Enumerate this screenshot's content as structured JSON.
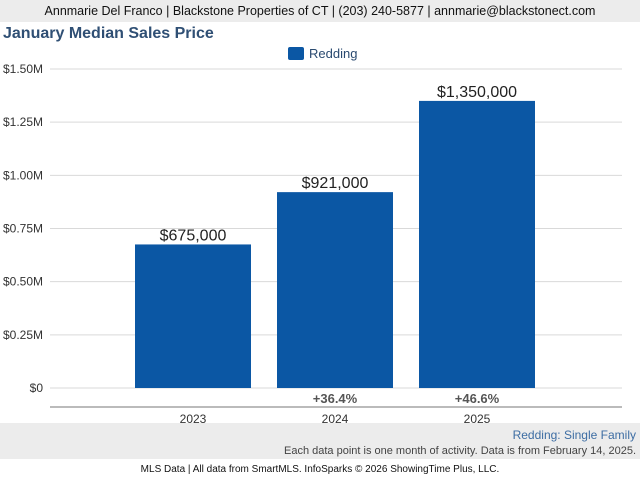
{
  "header": {
    "contact": "Annmarie Del Franco | Blackstone Properties of CT | (203) 240-5877 | annmarie@blackstonect.com"
  },
  "colors": {
    "bar": "#0b57a4",
    "title": "#2f4f74",
    "header_bg": "#ececec"
  },
  "chart_data": {
    "type": "bar",
    "title": "January Median Sales Price",
    "xlabel": "",
    "ylabel": "",
    "categories": [
      "2023",
      "2024",
      "2025"
    ],
    "series": [
      {
        "name": "Redding",
        "values": [
          675000,
          921000,
          1350000
        ],
        "value_labels": [
          "$675,000",
          "$921,000",
          "$1,350,000"
        ],
        "change_labels": [
          "",
          "+36.4%",
          "+46.6%"
        ]
      }
    ],
    "ylim": [
      0,
      1500000
    ],
    "yticks": [
      0,
      250000,
      500000,
      750000,
      1000000,
      1250000,
      1500000
    ],
    "ytick_labels": [
      "$0",
      "$0.25M",
      "$0.50M",
      "$0.75M",
      "$1.00M",
      "$1.25M",
      "$1.50M"
    ],
    "grid": true,
    "legend_position": "top-center"
  },
  "footer": {
    "subset": "Redding: Single Family",
    "note": "Each data point is one month of activity. Data is from February 14, 2025.",
    "credit": "MLS Data | All data from SmartMLS. InfoSparks © 2026 ShowingTime Plus, LLC."
  }
}
